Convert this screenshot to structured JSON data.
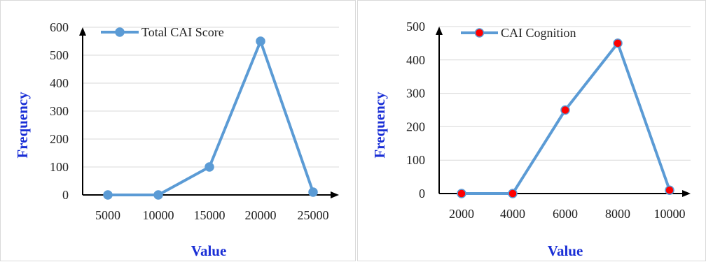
{
  "chart_data": [
    {
      "type": "line",
      "categories": [
        "5000",
        "10000",
        "15000",
        "20000",
        "25000"
      ],
      "series": [
        {
          "name": "Total CAI Score",
          "values": [
            0,
            0,
            100,
            550,
            10
          ],
          "marker_color": "#5b9bd5"
        }
      ],
      "xlabel": "Value",
      "ylabel": "Frequency",
      "ylim": [
        0,
        600
      ],
      "yticks": [
        "0",
        "100",
        "200",
        "300",
        "400",
        "500",
        "600"
      ],
      "grid": true,
      "legend": "top-left",
      "line_color": "#5b9bd5"
    },
    {
      "type": "line",
      "categories": [
        "2000",
        "4000",
        "6000",
        "8000",
        "10000"
      ],
      "series": [
        {
          "name": "CAI Cognition",
          "values": [
            0,
            0,
            250,
            450,
            10
          ],
          "marker_color": "#ff0000"
        }
      ],
      "xlabel": "Value",
      "ylabel": "Frequency",
      "ylim": [
        0,
        500
      ],
      "yticks": [
        "0",
        "100",
        "200",
        "300",
        "400",
        "500"
      ],
      "grid": true,
      "legend": "top-left",
      "line_color": "#5b9bd5"
    }
  ]
}
